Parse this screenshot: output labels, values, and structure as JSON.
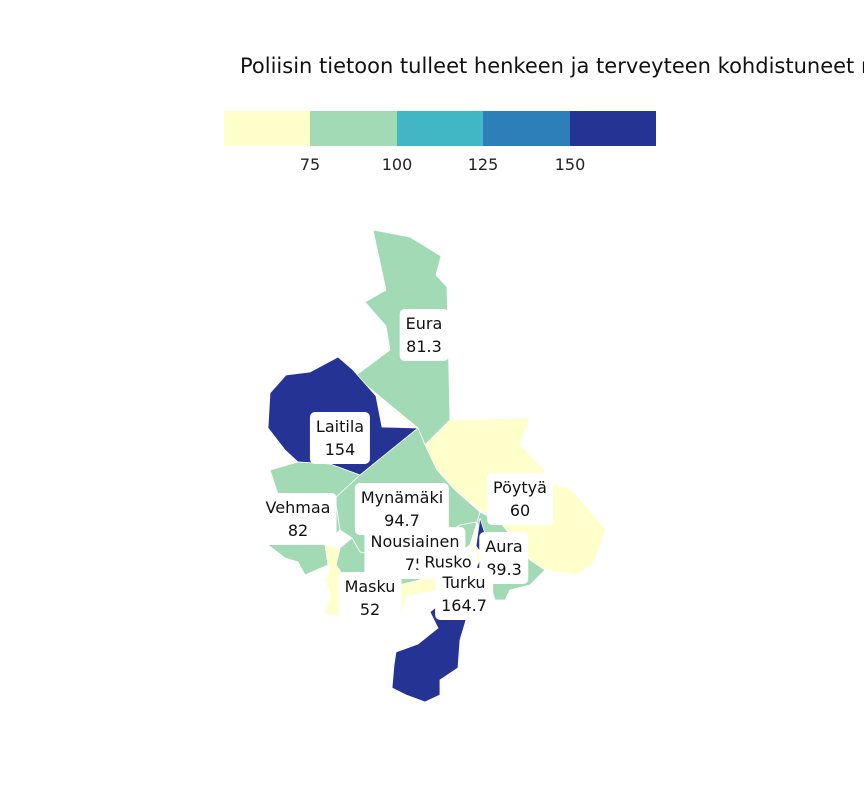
{
  "title": "Poliisin tietoon tulleet henkeen ja terveyteen kohdistuneet r",
  "legend": {
    "colors": [
      "#ffffcc",
      "#a1dab4",
      "#41b6c4",
      "#2c7fb8",
      "#253494"
    ],
    "ticks": [
      "75",
      "100",
      "125",
      "150"
    ]
  },
  "regions": [
    {
      "name": "Eura",
      "value": "81.3",
      "color": "#a1dab4"
    },
    {
      "name": "Laitila",
      "value": "154",
      "color": "#253494"
    },
    {
      "name": "Vehmaa",
      "value": "82",
      "color": "#a1dab4"
    },
    {
      "name": "Mynämäki",
      "value": "94.7",
      "color": "#a1dab4"
    },
    {
      "name": "Pöytyä",
      "value": "60",
      "color": "#ffffcc"
    },
    {
      "name": "Nousiainen",
      "value": "75",
      "color": "#a1dab4"
    },
    {
      "name": "Aura",
      "value": "89.3",
      "color": "#a1dab4"
    },
    {
      "name": "Rusko",
      "value": "",
      "color": "#ffffcc"
    },
    {
      "name": "Masku",
      "value": "52",
      "color": "#ffffcc"
    },
    {
      "name": "Turku",
      "value": "164.7",
      "color": "#253494"
    }
  ]
}
